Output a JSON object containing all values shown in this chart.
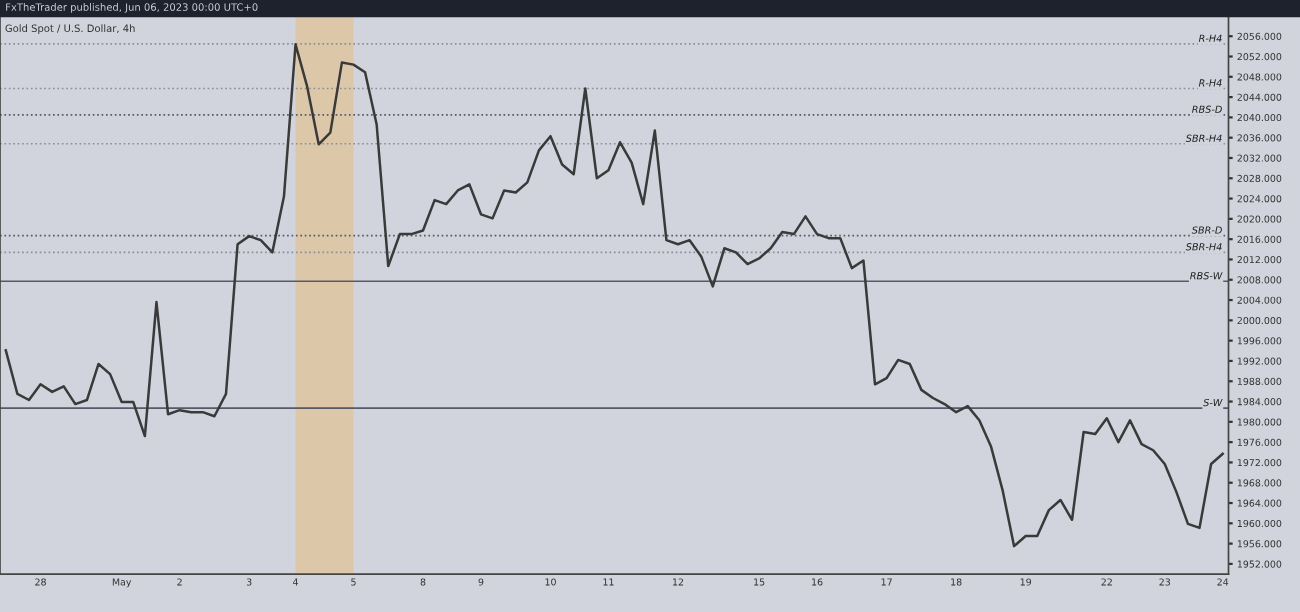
{
  "chart_data": {
    "type": "line",
    "title": "Gold Spot / U.S. Dollar, 4h",
    "annotations": [
      "FxTheTrader published, Jun 06, 2023 00:00 UTC+0"
    ],
    "categories": [
      null,
      null,
      null,
      "28",
      null,
      null,
      null,
      null,
      null,
      null,
      "May",
      null,
      null,
      null,
      null,
      "2",
      null,
      null,
      null,
      null,
      null,
      "3",
      null,
      null,
      null,
      "4",
      null,
      null,
      null,
      null,
      "5",
      null,
      null,
      null,
      null,
      null,
      "8",
      null,
      null,
      null,
      null,
      "9",
      null,
      null,
      null,
      null,
      null,
      "10",
      null,
      null,
      null,
      null,
      "11",
      null,
      null,
      null,
      null,
      null,
      "12",
      null,
      null,
      null,
      null,
      null,
      null,
      "15",
      null,
      null,
      null,
      null,
      "16",
      null,
      null,
      null,
      null,
      null,
      "17",
      null,
      null,
      null,
      null,
      null,
      "18",
      null,
      null,
      null,
      null,
      null,
      "19",
      null,
      null,
      null,
      null,
      null,
      null,
      "22",
      null,
      null,
      null,
      null,
      "23",
      null,
      null,
      null,
      null,
      "24"
    ],
    "ylim": [
      1950,
      2060
    ],
    "yticks": [
      {
        "value": 1952,
        "label": "1952.000"
      },
      {
        "value": 1956,
        "label": "1956.000"
      },
      {
        "value": 1960,
        "label": "1960.000"
      },
      {
        "value": 1964,
        "label": "1964.000"
      },
      {
        "value": 1968,
        "label": "1968.000"
      },
      {
        "value": 1972,
        "label": "1972.000"
      },
      {
        "value": 1976,
        "label": "1976.000"
      },
      {
        "value": 1980,
        "label": "1980.000"
      },
      {
        "value": 1984,
        "label": "1984.000"
      },
      {
        "value": 1988,
        "label": "1988.000"
      },
      {
        "value": 1992,
        "label": "1992.000"
      },
      {
        "value": 1996,
        "label": "1996.000"
      },
      {
        "value": 2000,
        "label": "2000.000"
      },
      {
        "value": 2004,
        "label": "2004.000"
      },
      {
        "value": 2008,
        "label": "2008.000"
      },
      {
        "value": 2012,
        "label": "2012.000"
      },
      {
        "value": 2016,
        "label": "2016.000"
      },
      {
        "value": 2020,
        "label": "2020.000"
      },
      {
        "value": 2024,
        "label": "2024.000"
      },
      {
        "value": 2028,
        "label": "2028.000"
      },
      {
        "value": 2032,
        "label": "2032.000"
      },
      {
        "value": 2036,
        "label": "2036.000"
      },
      {
        "value": 2040,
        "label": "2040.000"
      },
      {
        "value": 2044,
        "label": "2044.000"
      },
      {
        "value": 2048,
        "label": "2048.000"
      },
      {
        "value": 2052,
        "label": "2052.000"
      },
      {
        "value": 2056,
        "label": "2056.000"
      }
    ],
    "grid": false,
    "legend": false,
    "series": [
      {
        "color": "#3a3a3a",
        "line_style": "solid",
        "values": [
          1994.1,
          1985.5,
          1984.3,
          1987.4,
          1985.9,
          1987.0,
          1983.5,
          1984.3,
          1991.4,
          1989.4,
          1983.9,
          1983.9,
          1977.2,
          2003.6,
          1981.5,
          1982.3,
          1981.9,
          1981.9,
          1981.1,
          1985.5,
          2015.0,
          2016.6,
          2015.8,
          2013.4,
          2024.4,
          2054.4,
          2046.1,
          2034.7,
          2037.0,
          2050.8,
          2050.4,
          2048.9,
          2038.6,
          2010.7,
          2017.0,
          2017.0,
          2017.7,
          2023.7,
          2022.9,
          2025.6,
          2026.8,
          2020.9,
          2020.1,
          2025.6,
          2025.2,
          2027.2,
          2033.5,
          2036.3,
          2030.7,
          2028.8,
          2045.7,
          2028.0,
          2029.6,
          2035.1,
          2031.1,
          2022.9,
          2037.4,
          2015.8,
          2015.0,
          2015.8,
          2012.6,
          2006.7,
          2014.2,
          2013.4,
          2011.1,
          2012.2,
          2014.2,
          2017.4,
          2017.0,
          2020.5,
          2017.0,
          2016.2,
          2016.2,
          2010.3,
          2011.8,
          1987.4,
          1988.6,
          1992.2,
          1991.4,
          1986.3,
          1984.7,
          1983.5,
          1981.9,
          1983.1,
          1980.3,
          1975.2,
          1966.6,
          1955.5,
          1957.5,
          1957.5,
          1962.6,
          1964.6,
          1960.7,
          1978.0,
          1977.6,
          1980.7,
          1976.0,
          1980.3,
          1975.6,
          1974.4,
          1971.7,
          1966.2,
          1959.9,
          1959.1,
          1971.7,
          1973.7
        ]
      }
    ],
    "bands": [
      {
        "axis": "x",
        "from": "4",
        "to": "5",
        "color": "#dcc8a8"
      }
    ],
    "ref_lines": [
      {
        "axis": "y",
        "value": 2054.5,
        "label": "R-H4",
        "line_style": "dotted",
        "color": "#8a8e99"
      },
      {
        "axis": "y",
        "value": 2045.7,
        "label": "R-H4",
        "line_style": "dotted",
        "color": "#8a8e99"
      },
      {
        "axis": "y",
        "value": 2040.5,
        "label": "RBS-D",
        "line_style": "dotted",
        "color": "#555a66"
      },
      {
        "axis": "y",
        "value": 2034.8,
        "label": "SBR-H4",
        "line_style": "dotted",
        "color": "#8a8e99"
      },
      {
        "axis": "y",
        "value": 2016.7,
        "label": "SBR-D",
        "line_style": "dotted",
        "color": "#555a66"
      },
      {
        "axis": "y",
        "value": 2013.4,
        "label": "SBR-H4",
        "line_style": "dotted",
        "color": "#8a8e99"
      },
      {
        "axis": "y",
        "value": 2007.7,
        "label": "RBS-W",
        "line_style": "solid",
        "color": "#555a66"
      },
      {
        "axis": "y",
        "value": 1982.7,
        "label": "S-W",
        "line_style": "solid",
        "color": "#555a66"
      }
    ]
  }
}
